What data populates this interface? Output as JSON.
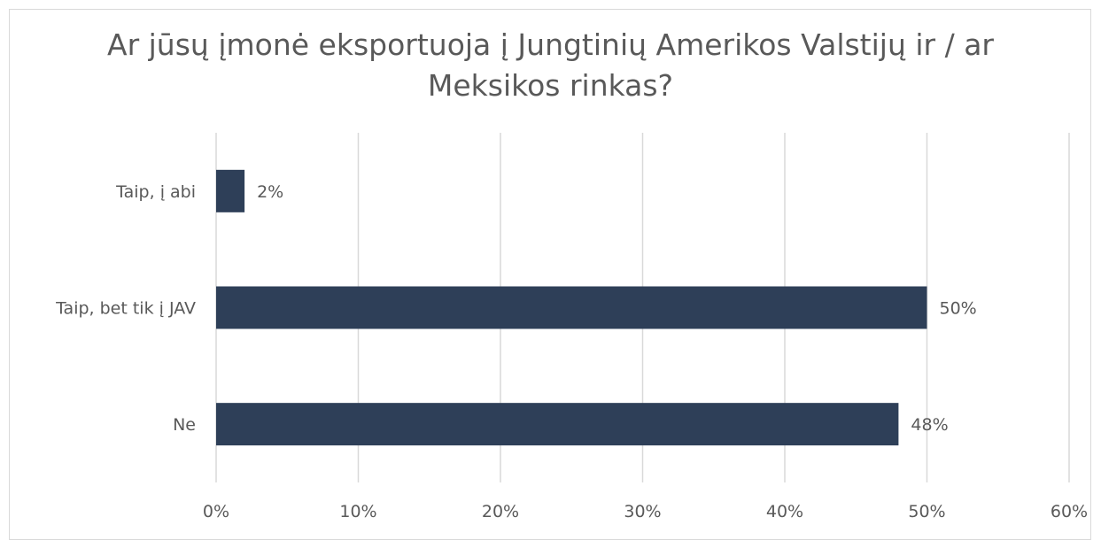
{
  "chart_data": {
    "type": "bar",
    "orientation": "horizontal",
    "title": "Ar jūsų įmonė eksportuoja į Jungtinių Amerikos Valstijų ir / ar Meksikos rinkas?",
    "categories": [
      "Taip, į abi",
      "Taip, bet tik į JAV",
      "Ne"
    ],
    "values": [
      2,
      50,
      48
    ],
    "data_labels": [
      "2%",
      "50%",
      "48%"
    ],
    "xlim": [
      0,
      60
    ],
    "x_ticks": [
      0,
      10,
      20,
      30,
      40,
      50,
      60
    ],
    "x_tick_labels": [
      "0%",
      "10%",
      "20%",
      "30%",
      "40%",
      "50%",
      "60%"
    ],
    "xlabel": "",
    "ylabel": "",
    "grid": true,
    "legend": "none",
    "colors": {
      "bar": "#2e3f58",
      "grid": "#d9d9d9",
      "text": "#595959"
    }
  }
}
